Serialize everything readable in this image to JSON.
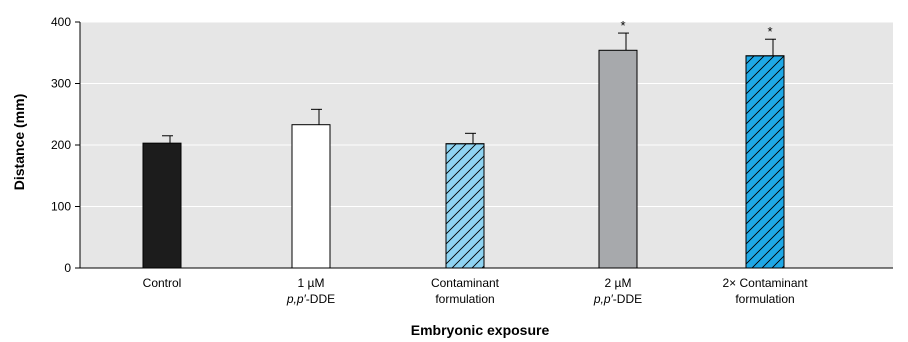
{
  "chart_data": {
    "type": "bar",
    "xlabel": "Embryonic exposure",
    "ylabel": "Distance (mm)",
    "ylim": [
      0,
      400
    ],
    "yticks": [
      0,
      100,
      200,
      300,
      400
    ],
    "grid": true,
    "categories": [
      {
        "line1": "Control",
        "line2": "",
        "line2_prefix_italic": "",
        "line2_suffix": ""
      },
      {
        "line1": "1 µM",
        "line2": "",
        "line2_prefix_italic": "p,p′",
        "line2_suffix": "-DDE"
      },
      {
        "line1": "Contaminant",
        "line2": "formulation",
        "line2_prefix_italic": "",
        "line2_suffix": ""
      },
      {
        "line1": "2 µM",
        "line2": "",
        "line2_prefix_italic": "p,p′",
        "line2_suffix": "-DDE"
      },
      {
        "line1": "2× Contaminant",
        "line2": "formulation",
        "line2_prefix_italic": "",
        "line2_suffix": ""
      }
    ],
    "values": [
      203,
      233,
      202,
      354,
      345
    ],
    "errors": [
      12,
      25,
      17,
      28,
      27
    ],
    "significance": [
      "",
      "",
      "",
      "*",
      "*"
    ],
    "bar_styles": [
      {
        "fill": "#1c1c1c",
        "hatch": false
      },
      {
        "fill": "#ffffff",
        "hatch": false
      },
      {
        "fill": "#8fd4f2",
        "hatch": true
      },
      {
        "fill": "#a7a9ac",
        "hatch": false
      },
      {
        "fill": "#1ea8e6",
        "hatch": true
      }
    ],
    "plot_background": "#e6e6e6",
    "gridline_color": "#ffffff"
  }
}
